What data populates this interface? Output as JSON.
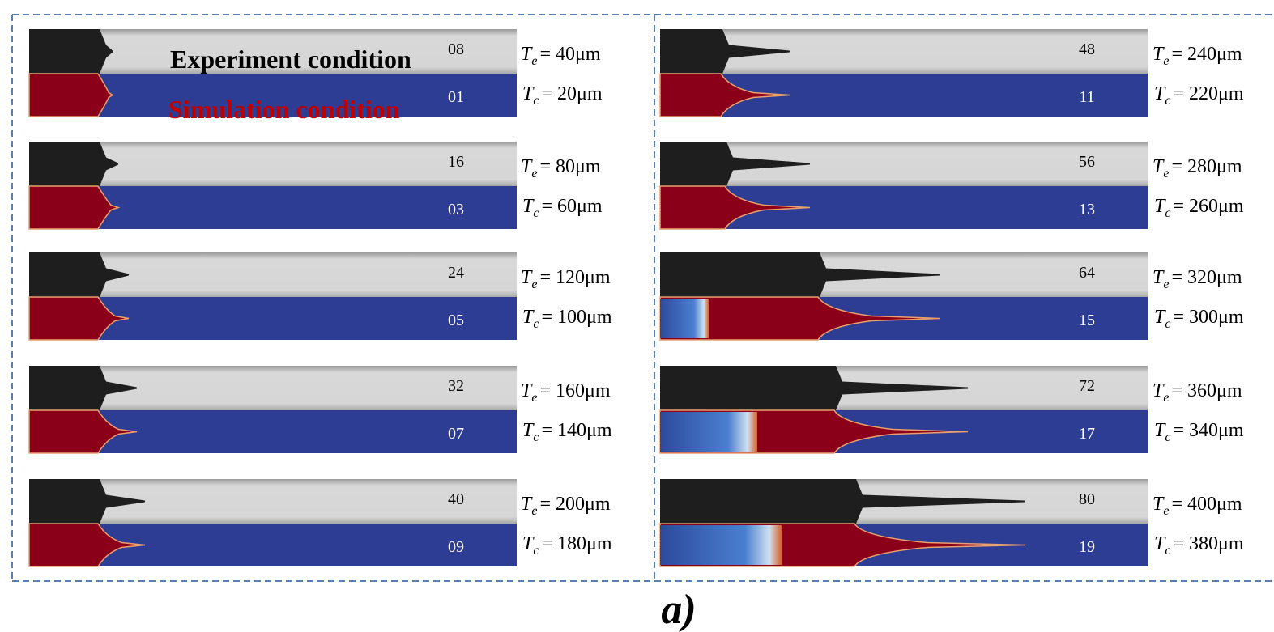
{
  "legend": {
    "experiment": "Experiment condition",
    "simulation": "Simulation condition"
  },
  "panel_label": "a)",
  "panels": [
    {
      "rows": [
        {
          "experiment_frame": "08",
          "simulation_frame": "01",
          "te": {
            "symbol": "T",
            "subscript": "e",
            "text": "= 40μm"
          },
          "tc": {
            "symbol": "T",
            "subscript": "c",
            "text": "= 20μm"
          }
        },
        {
          "experiment_frame": "16",
          "simulation_frame": "03",
          "te": {
            "symbol": "T",
            "subscript": "e",
            "text": "= 80μm"
          },
          "tc": {
            "symbol": "T",
            "subscript": "c",
            "text": "= 60μm"
          }
        },
        {
          "experiment_frame": "24",
          "simulation_frame": "05",
          "te": {
            "symbol": "T",
            "subscript": "e",
            "text": "= 120μm"
          },
          "tc": {
            "symbol": "T",
            "subscript": "c",
            "text": "= 100μm"
          }
        },
        {
          "experiment_frame": "32",
          "simulation_frame": "07",
          "te": {
            "symbol": "T",
            "subscript": "e",
            "text": "= 160μm"
          },
          "tc": {
            "symbol": "T",
            "subscript": "c",
            "text": "= 140μm"
          }
        },
        {
          "experiment_frame": "40",
          "simulation_frame": "09",
          "te": {
            "symbol": "T",
            "subscript": "e",
            "text": "= 200μm"
          },
          "tc": {
            "symbol": "T",
            "subscript": "c",
            "text": "= 180μm"
          }
        }
      ]
    },
    {
      "rows": [
        {
          "experiment_frame": "48",
          "simulation_frame": "11",
          "te": {
            "symbol": "T",
            "subscript": "e",
            "text": "= 240μm"
          },
          "tc": {
            "symbol": "T",
            "subscript": "c",
            "text": "= 220μm"
          }
        },
        {
          "experiment_frame": "56",
          "simulation_frame": "13",
          "te": {
            "symbol": "T",
            "subscript": "e",
            "text": "= 280μm"
          },
          "tc": {
            "symbol": "T",
            "subscript": "c",
            "text": "= 260μm"
          }
        },
        {
          "experiment_frame": "64",
          "simulation_frame": "15",
          "te": {
            "symbol": "T",
            "subscript": "e",
            "text": "= 320μm"
          },
          "tc": {
            "symbol": "T",
            "subscript": "c",
            "text": "= 300μm"
          }
        },
        {
          "experiment_frame": "72",
          "simulation_frame": "17",
          "te": {
            "symbol": "T",
            "subscript": "e",
            "text": "= 360μm"
          },
          "tc": {
            "symbol": "T",
            "subscript": "c",
            "text": "= 340μm"
          }
        },
        {
          "experiment_frame": "80",
          "simulation_frame": "19",
          "te": {
            "symbol": "T",
            "subscript": "e",
            "text": "= 400μm"
          },
          "tc": {
            "symbol": "T",
            "subscript": "c",
            "text": "= 380μm"
          }
        }
      ]
    }
  ]
}
